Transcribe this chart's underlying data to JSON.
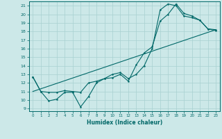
{
  "title": "",
  "xlabel": "Humidex (Indice chaleur)",
  "xlim": [
    -0.5,
    23.5
  ],
  "ylim": [
    8.7,
    21.5
  ],
  "yticks": [
    9,
    10,
    11,
    12,
    13,
    14,
    15,
    16,
    17,
    18,
    19,
    20,
    21
  ],
  "xticks": [
    0,
    1,
    2,
    3,
    4,
    5,
    6,
    7,
    8,
    9,
    10,
    11,
    12,
    13,
    14,
    15,
    16,
    17,
    18,
    19,
    20,
    21,
    22,
    23
  ],
  "bg_color": "#cce8e8",
  "line_color": "#006868",
  "grid_color": "#a8d0d0",
  "line1_x": [
    0,
    1,
    2,
    3,
    4,
    5,
    6,
    7,
    8,
    9,
    10,
    11,
    12,
    13,
    14,
    15,
    16,
    17,
    18,
    19,
    20,
    21,
    22,
    23
  ],
  "line1_y": [
    12.7,
    11.0,
    9.9,
    10.1,
    10.9,
    10.9,
    9.2,
    10.4,
    12.0,
    12.5,
    12.6,
    13.0,
    12.2,
    14.1,
    15.5,
    16.2,
    19.2,
    20.0,
    21.2,
    20.1,
    19.8,
    19.3,
    18.3,
    18.1
  ],
  "line2_x": [
    0,
    1,
    2,
    3,
    4,
    5,
    6,
    7,
    8,
    9,
    10,
    11,
    12,
    13,
    14,
    15,
    16,
    17,
    18,
    19,
    20,
    21,
    22,
    23
  ],
  "line2_y": [
    12.7,
    11.0,
    10.9,
    10.9,
    11.1,
    11.0,
    10.9,
    12.0,
    12.2,
    12.5,
    13.0,
    13.2,
    12.5,
    13.0,
    14.0,
    16.0,
    20.5,
    21.2,
    21.0,
    19.8,
    19.6,
    19.3,
    18.3,
    18.2
  ],
  "line3_x": [
    0,
    23
  ],
  "line3_y": [
    11.0,
    18.2
  ]
}
